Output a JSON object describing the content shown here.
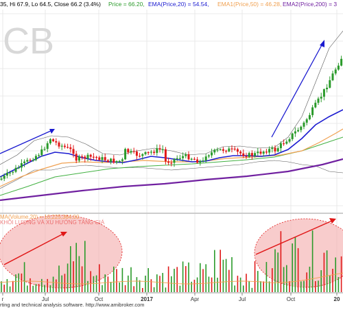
{
  "header": {
    "ohlc_text": "35, Hi 67.9, Lo 64.5, Close 66.2 (3.4%)",
    "price_text": "Price = 66.20,",
    "ema20_text": "EMA(Price,20) = 54.54,",
    "ema50_text": "EMA1(Price,50) = 46.28,",
    "ema200_text": "EMA2(Price,200) = 3"
  },
  "watermark": "CB",
  "volume_header": {
    "ma_text": "MA(Volume,20) = 10,225,364.00",
    "subtitle": "KHỐI LƯỢNG VÀ XU HƯỚNG TĂNG GIÁ"
  },
  "footer": {
    "text": "rting and technical analysis software. http://www.amibroker.com"
  },
  "colors": {
    "up": "#2a9a2a",
    "down": "#e01818",
    "ema20": "#1a1ad0",
    "ema50": "#f0a050",
    "ema100": "#40b040",
    "ema200": "#7020a0",
    "annotation_arrow": "#1a1ad0",
    "volume_arrow": "#e01818",
    "ellipse_fill": "#f4b0b0"
  },
  "chart_data": {
    "type": "candlestick",
    "x_tick_labels": [
      "r",
      "Jul",
      "Oct",
      "2017",
      "Apr",
      "Jul",
      "Oct",
      "20"
    ],
    "last_price": 66.2,
    "indicators": [
      {
        "name": "EMA(Price,20)",
        "value": 54.54
      },
      {
        "name": "EMA1(Price,50)",
        "value": 46.28
      }
    ],
    "volume_ma20": 10225364.0
  }
}
